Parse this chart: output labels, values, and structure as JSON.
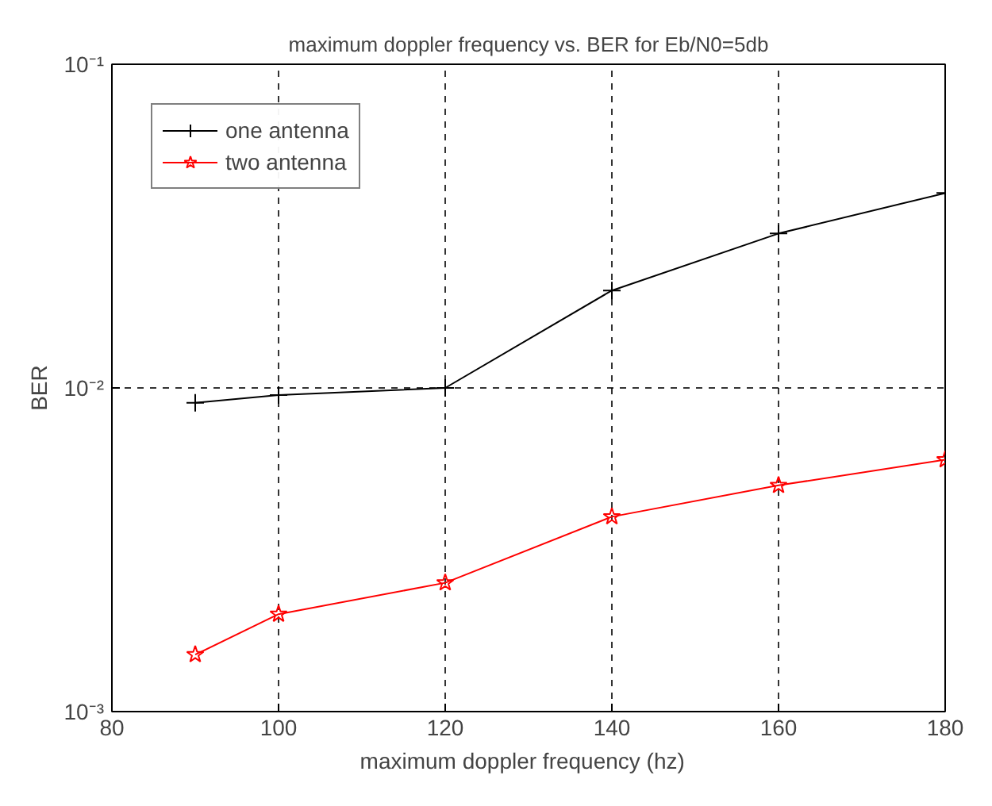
{
  "chart_data": {
    "type": "line",
    "title": "maximum doppler frequency vs. BER for Eb/N0=5db",
    "xlabel": "maximum  doppler frequency  (hz)",
    "ylabel": "BER",
    "x": [
      90,
      100,
      120,
      140,
      160,
      180
    ],
    "series": [
      {
        "name": "one antenna",
        "color": "#000000",
        "marker": "cross",
        "values": [
          0.009,
          0.0095,
          0.01,
          0.02,
          0.03,
          0.04
        ]
      },
      {
        "name": "two antenna",
        "color": "#ff0000",
        "marker": "star",
        "values": [
          0.0015,
          0.002,
          0.0025,
          0.004,
          0.005,
          0.006
        ]
      }
    ],
    "xlim": [
      80,
      180
    ],
    "xticks": [
      80,
      100,
      120,
      140,
      160,
      180
    ],
    "ylim": [
      0.001,
      0.1
    ],
    "yticks": [
      {
        "value": 0.001,
        "label": "10⁻³"
      },
      {
        "value": 0.01,
        "label": "10⁻²"
      },
      {
        "value": 0.1,
        "label": "10⁻¹"
      }
    ],
    "log": "y",
    "grid": true,
    "legend": "top left",
    "line_style": "solid"
  }
}
